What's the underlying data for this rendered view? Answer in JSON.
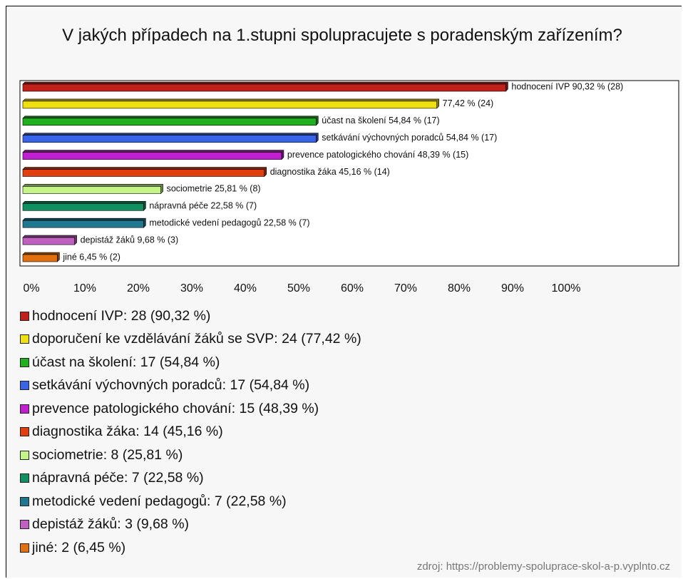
{
  "chart_data": {
    "type": "bar",
    "orientation": "horizontal",
    "title": "V jakých případech na 1.stupni spolupracujete s poradenským zařízením?",
    "values": [
      90.32,
      77.42,
      54.84,
      54.84,
      48.39,
      45.16,
      25.81,
      22.58,
      22.58,
      9.68,
      6.45
    ],
    "value_labels": [
      "hodnocení IVP 90,32 % (28)",
      "77,42 % (24)",
      "účast na školení 54,84 % (17)",
      "setkávání výchovných poradců 54,84 % (17)",
      "prevence patologického chování 48,39 % (15)",
      "diagnostika žáka 45,16 % (14)",
      "sociometrie 25,81 % (8)",
      "nápravná péče 22,58 % (7)",
      "metodické vedení pedagogů 22,58 % (7)",
      "depistáž žáků 9,68 % (3)",
      "jiné 6,45 % (2)"
    ],
    "colors": [
      "#c0201a",
      "#f0e010",
      "#20b020",
      "#3a64e8",
      "#c020d0",
      "#e04010",
      "#c4f488",
      "#109060",
      "#207890",
      "#c060c0",
      "#e07010"
    ],
    "legend": [
      "hodnocení IVP: 28 (90,32 %)",
      "doporučení ke vzdělávání žáků se SVP: 24 (77,42 %)",
      "účast na školení: 17 (54,84 %)",
      "setkávání výchovných poradců: 17 (54,84 %)",
      "prevence patologického chování: 15 (48,39 %)",
      "diagnostika žáka: 14 (45,16 %)",
      "sociometrie: 8 (25,81 %)",
      "nápravná péče: 7 (22,58 %)",
      "metodické vedení pedagogů: 7 (22,58 %)",
      "depistáž žáků: 3 (9,68 %)",
      "jiné: 2 (6,45 %)"
    ],
    "xlim": [
      0,
      100
    ],
    "xticks": [
      {
        "value": 0,
        "label": "0%"
      },
      {
        "value": 10,
        "label": "10%"
      },
      {
        "value": 20,
        "label": "20%"
      },
      {
        "value": 30,
        "label": "30%"
      },
      {
        "value": 40,
        "label": "40%"
      },
      {
        "value": 50,
        "label": "50%"
      },
      {
        "value": 60,
        "label": "60%"
      },
      {
        "value": 70,
        "label": "70%"
      },
      {
        "value": 80,
        "label": "80%"
      },
      {
        "value": 90,
        "label": "90%"
      },
      {
        "value": 100,
        "label": "100%"
      }
    ],
    "source": "zdroj: https://problemy-spoluprace-skol-a-p.vyplnto.cz"
  }
}
